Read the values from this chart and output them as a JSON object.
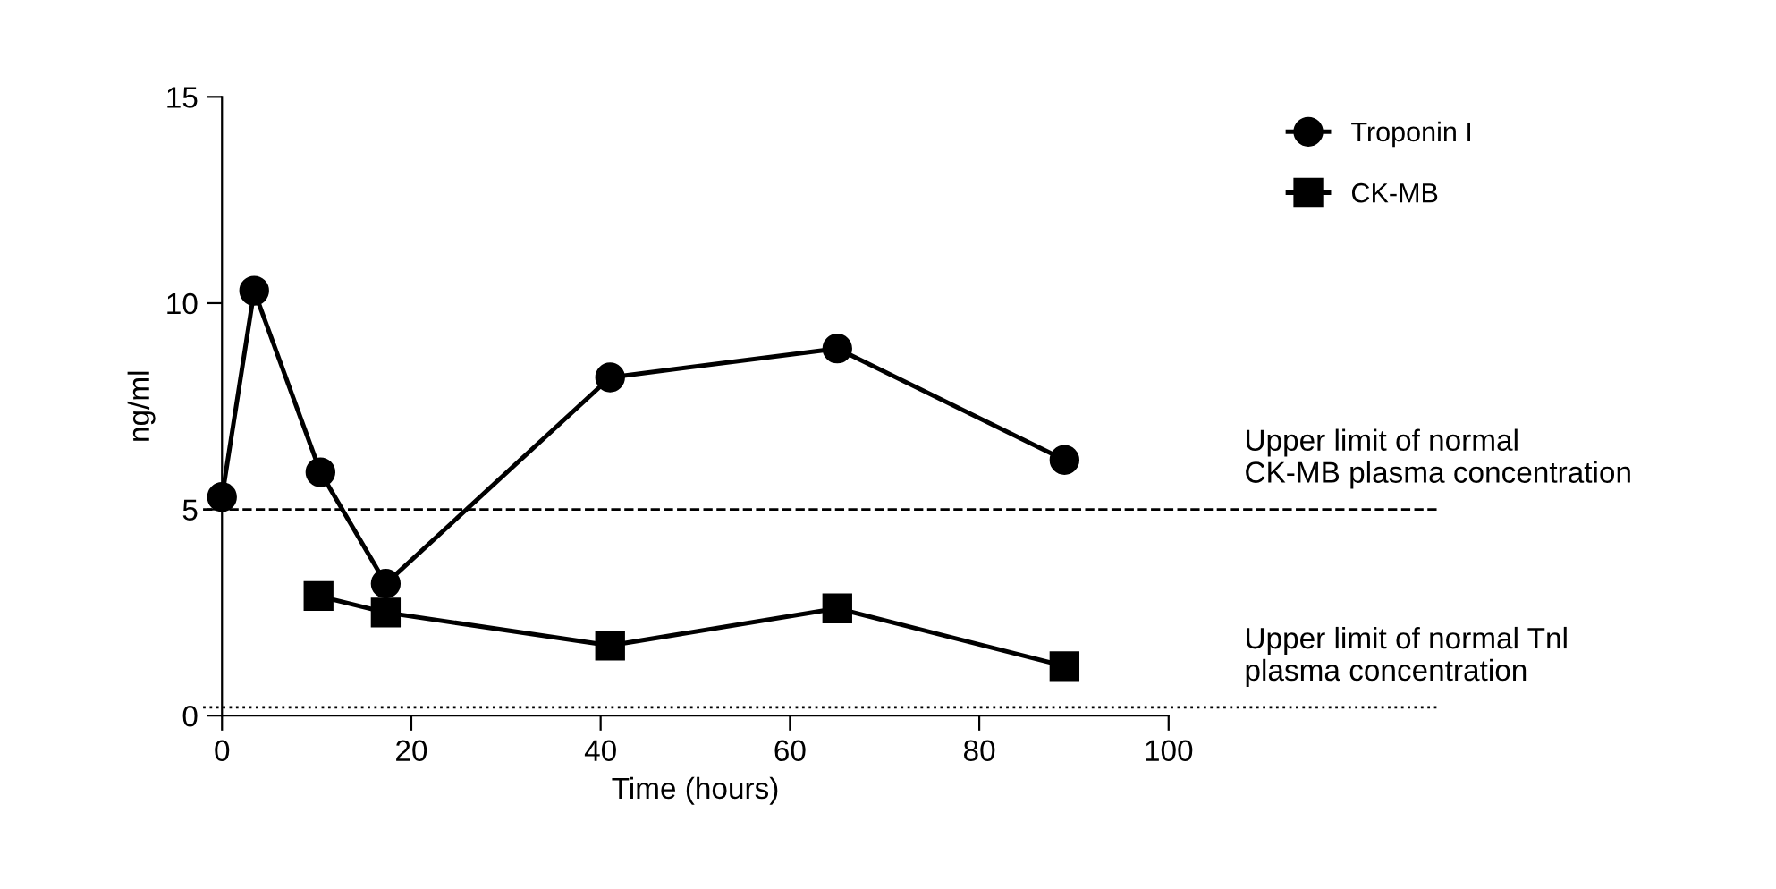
{
  "chart_data": {
    "type": "line",
    "xlabel": "Time (hours)",
    "ylabel": "ng/ml",
    "series": [
      {
        "name": "Troponin I",
        "color": "#000000",
        "marker": "circle",
        "x": [
          0,
          3.4,
          10.4,
          17.3,
          41,
          65,
          89
        ],
        "values": [
          5.3,
          10.3,
          5.9,
          3.2,
          8.2,
          8.9,
          6.2
        ]
      },
      {
        "name": "CK-MB",
        "color": "#000000",
        "marker": "square",
        "x": [
          10.2,
          17.3,
          41,
          65,
          89
        ],
        "values": [
          2.9,
          2.5,
          1.7,
          2.6,
          1.2
        ]
      }
    ],
    "xlim": [
      0,
      100
    ],
    "xticks": [
      0,
      20,
      40,
      60,
      80,
      100
    ],
    "ylim": [
      0,
      15
    ],
    "yticks": [
      0,
      5,
      10,
      15
    ],
    "ref_lines": [
      {
        "axis": "y",
        "value": 5,
        "label": "Upper limit of normal\nCK-MB plasma concentration",
        "color": "#000000",
        "line_style": "dashed"
      },
      {
        "axis": "y",
        "value": 0.2,
        "label": "Upper limit of normal Tnl\nplasma concentration",
        "color": "#000000",
        "line_style": "dotted"
      }
    ],
    "grid": false,
    "legend": "top right",
    "line_style": "solid"
  }
}
